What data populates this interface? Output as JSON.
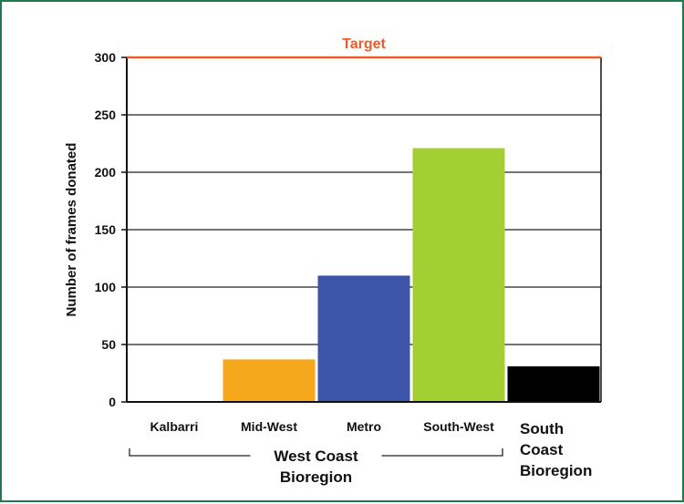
{
  "chart_data": {
    "type": "bar",
    "title": "",
    "ylabel": "Number of frames donated",
    "xlabel": "",
    "ylim": [
      0,
      300
    ],
    "yticks": [
      0,
      50,
      100,
      150,
      200,
      250,
      300
    ],
    "grid": true,
    "categories": [
      "Kalbarri",
      "Mid-West",
      "Metro",
      "South-West",
      "South Coast Bioregion"
    ],
    "values": [
      0,
      37,
      110,
      221,
      31
    ],
    "bar_colors": [
      "#f5a81c",
      "#f5a81c",
      "#3d55a8",
      "#a4cf33",
      "#000000"
    ],
    "target": {
      "label": "Target",
      "value": 300,
      "color": "#f05a28"
    },
    "groups": [
      {
        "label": "West Coast Bioregion",
        "categories": [
          "Kalbarri",
          "Mid-West",
          "Metro",
          "South-West"
        ]
      }
    ]
  }
}
